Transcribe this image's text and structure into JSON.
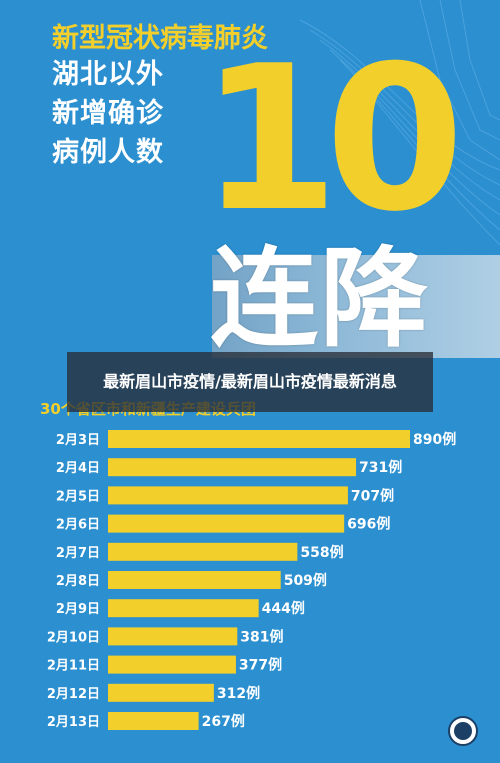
{
  "headline": {
    "line1": "新型冠状病毒肺炎",
    "line2": "湖北以外",
    "line3": "新增确诊",
    "line4": "病例人数"
  },
  "big_number": "10",
  "streak_word": "连降",
  "overlay_title": "最新眉山市疫情/最新眉山市疫情最新消息",
  "chart_data": {
    "type": "bar",
    "title": "30个省区市和新疆生产建设兵团",
    "orientation": "horizontal",
    "categories": [
      "2月3日",
      "2月4日",
      "2月5日",
      "2月6日",
      "2月7日",
      "2月8日",
      "2月9日",
      "2月10日",
      "2月11日",
      "2月12日",
      "2月13日"
    ],
    "values": [
      890,
      731,
      707,
      696,
      558,
      509,
      444,
      381,
      377,
      312,
      267
    ],
    "value_labels": [
      "890例",
      "731例",
      "707例",
      "696例",
      "558例",
      "509例",
      "444例",
      "381例",
      "377例",
      "312例",
      "267例"
    ],
    "unit": "例",
    "xlim": [
      0,
      890
    ],
    "grid": false,
    "bar_color": "#f2cf2a",
    "label_color": "#ffffff"
  },
  "colors": {
    "background": "#2b8fd0",
    "accent": "#f2cf2a"
  },
  "logo_icon": "emblem-icon"
}
